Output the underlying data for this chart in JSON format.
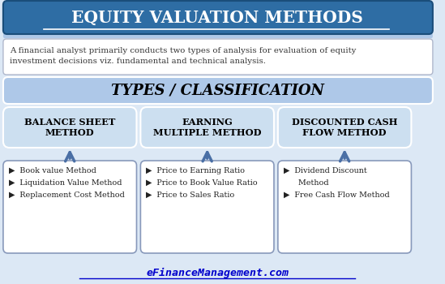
{
  "title": "EQUITY VALUATION METHODS",
  "subtitle": "A financial analyst primarily conducts two types of analysis for evaluation of equity\ninvestment decisions viz. fundamental and technical analysis.",
  "classification_label": "TYPES / CLASSIFICATION",
  "methods": [
    "BALANCE SHEET\nMETHOD",
    "EARNING\nMULTIPLE METHOD",
    "DISCOUNTED CASH\nFLOW METHOD"
  ],
  "details": [
    [
      "▶  Book value Method",
      "▶  Liquidation Value Method",
      "▶  Replacement Cost Method"
    ],
    [
      "▶  Price to Earning Ratio",
      "▶  Price to Book Value Ratio",
      "▶  Price to Sales Ratio"
    ],
    [
      "▶  Dividend Discount\n      Method",
      "▶  Free Cash Flow Method"
    ]
  ],
  "footer": "eFinanceManagement.com",
  "header_bg": "#2e6da4",
  "light_blue_bg": "#aec8e8",
  "lighter_blue_bg": "#ccdff0",
  "white_box_bg": "#ffffff",
  "detail_box_bg": "#ffffff",
  "footer_color": "#0000cc",
  "background": "#dce8f5"
}
